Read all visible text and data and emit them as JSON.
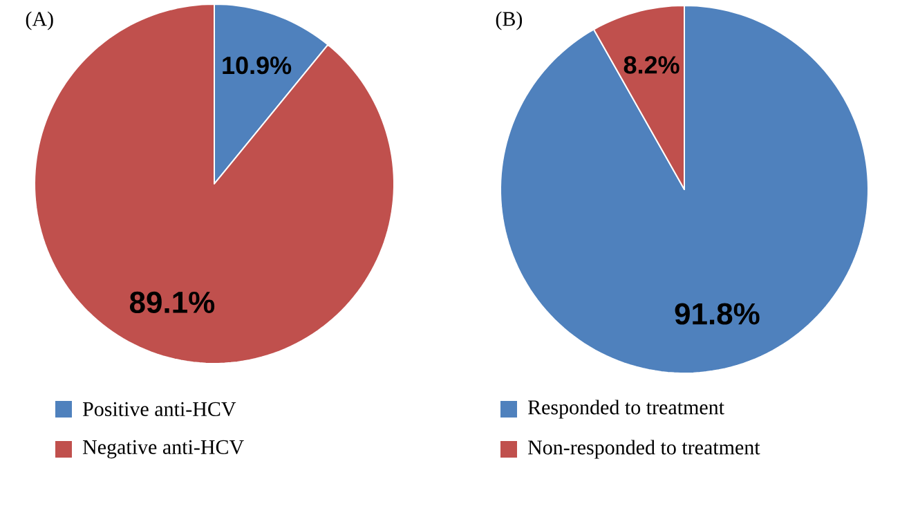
{
  "chart_data": [
    {
      "type": "pie",
      "title": "(A)",
      "categories": [
        "Positive anti-HCV",
        "Negative anti-HCV"
      ],
      "values": [
        10.9,
        89.1
      ],
      "colors": [
        "#4f81bd",
        "#c0504d"
      ],
      "value_labels": [
        "10.9%",
        "89.1%"
      ],
      "legend": "bottom"
    },
    {
      "type": "pie",
      "title": "(B)",
      "categories": [
        "Responded to treatment",
        "Non-responded to treatment"
      ],
      "values": [
        91.8,
        8.2
      ],
      "colors": [
        "#4f81bd",
        "#c0504d"
      ],
      "value_labels": [
        "91.8%",
        "8.2%"
      ],
      "legend": "bottom"
    }
  ]
}
